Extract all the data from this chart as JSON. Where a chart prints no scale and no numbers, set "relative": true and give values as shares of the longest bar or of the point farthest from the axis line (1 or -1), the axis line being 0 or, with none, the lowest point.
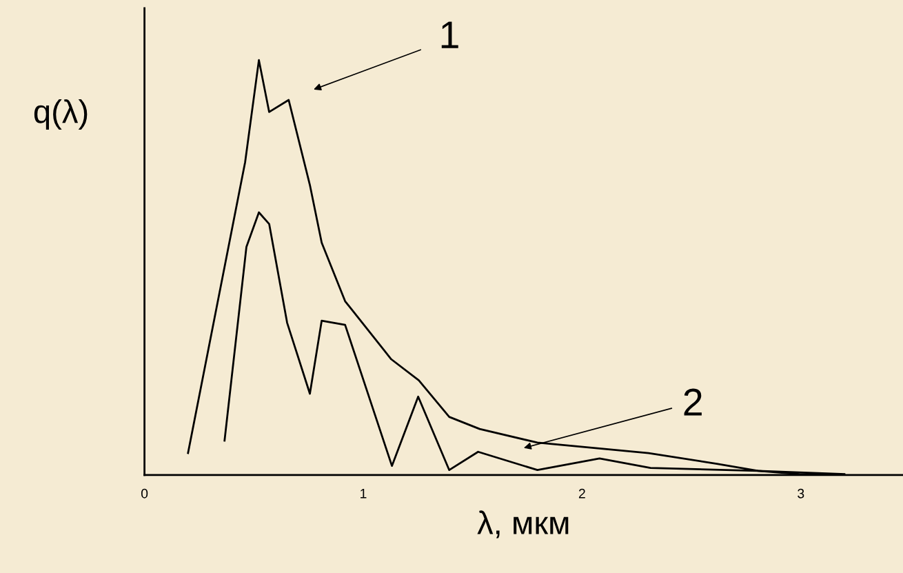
{
  "chart_data": {
    "type": "line",
    "relative": true,
    "xlabel": "λ, мкм",
    "ylabel": "q(λ)",
    "xlim": [
      0,
      3.467
    ],
    "xticks": [
      0,
      1,
      2,
      3
    ],
    "tick_labels": "x",
    "grid": false,
    "legend": false,
    "marker": "none",
    "line_style": "solid",
    "series": [
      {
        "color": "#000000",
        "x": [
          0.199,
          0.46,
          0.523,
          0.57,
          0.659,
          0.756,
          0.81,
          0.917,
          1.128,
          1.254,
          1.393,
          1.532,
          1.796,
          2.304,
          2.616,
          2.805,
          2.994,
          3.199
        ],
        "values": [
          0.053,
          0.754,
          1.0,
          0.875,
          0.904,
          0.699,
          0.56,
          0.419,
          0.279,
          0.228,
          0.14,
          0.111,
          0.078,
          0.053,
          0.027,
          0.01,
          0.002,
          0
        ]
      },
      {
        "color": "#000000",
        "x": [
          0.366,
          0.466,
          0.523,
          0.57,
          0.652,
          0.756,
          0.81,
          0.917,
          1.131,
          1.251,
          1.393,
          1.525,
          1.796,
          2.08,
          2.313,
          2.805,
          3.199
        ],
        "values": [
          0.083,
          0.55,
          0.633,
          0.605,
          0.367,
          0.196,
          0.372,
          0.362,
          0.022,
          0.189,
          0.012,
          0.056,
          0.012,
          0.04,
          0.017,
          0.01,
          0.002
        ]
      }
    ],
    "annotations": [
      "1",
      "2"
    ]
  }
}
